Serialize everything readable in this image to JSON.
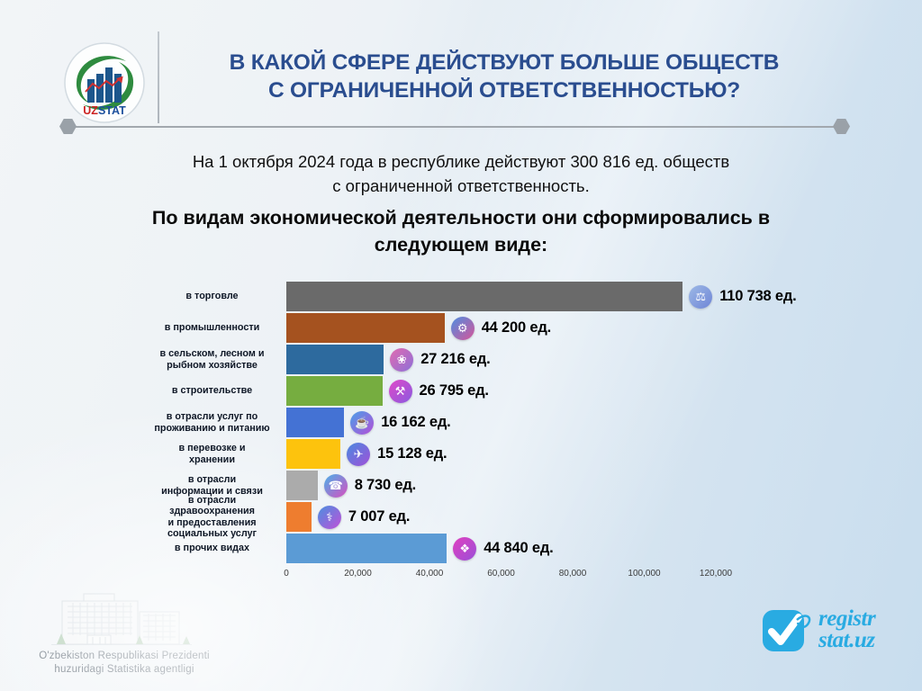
{
  "header": {
    "title_line1": "В КАКОЙ СФЕРЕ ДЕЙСТВУЮТ БОЛЬШЕ ОБЩЕСТВ",
    "title_line2": "С ОГРАНИЧЕННОЙ ОТВЕТСТВЕННОСТЬЮ?",
    "logo_uz": "UZ",
    "logo_stat": "STAT"
  },
  "intro": {
    "line1": "На 1 октября 2024 года в республике действуют 300 816 ед. обществ",
    "line2": "с ограниченной ответственность."
  },
  "section_heading": {
    "line1": "По видам экономической деятельности они сформировались в",
    "line2": "следующем виде:"
  },
  "chart_data": {
    "type": "bar",
    "orientation": "horizontal",
    "title": "",
    "xlabel": "",
    "ylabel": "",
    "xlim": [
      0,
      120000
    ],
    "grid": false,
    "legend": false,
    "categories": [
      "в торговле",
      "в промышленности",
      "в сельском, лесном и\nрыбном хозяйстве",
      "в строительстве",
      "в отрасли услуг по\nпроживанию и питанию",
      "в перевозке и\nхранении",
      "в отрасли\nинформации и связи",
      "в отрасли здравоохранения\nи предоставления\nсоциальных услуг",
      "в прочих видах"
    ],
    "values": [
      110738,
      44200,
      27216,
      26795,
      16162,
      15128,
      8730,
      7007,
      44840
    ],
    "value_labels": [
      "110 738 ед.",
      "44 200 ед.",
      "27 216 ед.",
      "26 795 ед.",
      "16 162 ед.",
      "15 128 ед.",
      "8 730 ед.",
      "7 007 ед.",
      "44 840 ед."
    ],
    "bar_colors": [
      "#6a6a6a",
      "#a5521f",
      "#2d6a9e",
      "#76ad40",
      "#4472d4",
      "#fdc30d",
      "#ababab",
      "#ee7d2f",
      "#5b9bd5"
    ],
    "row_ids": [
      "trade",
      "industry",
      "agriculture",
      "construction",
      "accommodation-food",
      "transport-storage",
      "information-communication",
      "healthcare-social",
      "other"
    ],
    "icon_names": [
      "trade-icon",
      "industry-icon",
      "agriculture-icon",
      "construction-icon",
      "food-service-icon",
      "transport-icon",
      "communication-icon",
      "healthcare-icon",
      "other-activities-icon"
    ],
    "icon_glyphs": [
      "⚖",
      "⚙",
      "❀",
      "⚒",
      "☕",
      "✈",
      "☎",
      "⚕",
      "❖"
    ],
    "icon_gradients": [
      "linear-gradient(135deg,#9db9e6,#6e85d6)",
      "linear-gradient(135deg,#4e8ee0,#d6559a)",
      "linear-gradient(135deg,#e06bb0,#8e6fd8)",
      "linear-gradient(135deg,#e049c8,#8a5ae0)",
      "linear-gradient(135deg,#49a0e8,#b44fd8)",
      "linear-gradient(135deg,#4a8ae0,#a050d8)",
      "linear-gradient(135deg,#49b0e8,#d84fc0)",
      "linear-gradient(135deg,#4a90e0,#c04fd8)",
      "linear-gradient(135deg,#e040c0,#9a4fd8)"
    ],
    "x_ticks": [
      "0",
      "20,000",
      "40,000",
      "60,000",
      "80,000",
      "100,000",
      "120,000"
    ],
    "units_suffix": "ед."
  },
  "footer": {
    "agency_line1": "O'zbekiston Respublikasi Prezidenti",
    "agency_line2": "huzuridagi Statistika agentligi",
    "registr_line1": "registr",
    "registr_line2": "stat.uz"
  },
  "colors": {
    "title_navy": "#2a4d8f",
    "accent_blue": "#29abe2"
  }
}
